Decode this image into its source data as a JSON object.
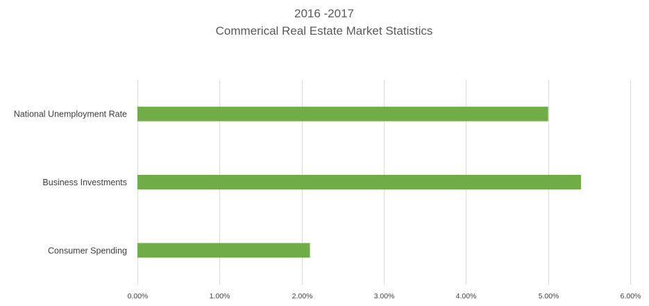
{
  "chart_data": {
    "type": "bar",
    "orientation": "horizontal",
    "title_lines": [
      "2016 -2017",
      "Commerical Real Estate Market Statistics"
    ],
    "categories": [
      "National Unemployment Rate",
      "Business Investments",
      "Consumer Spending"
    ],
    "values": [
      5.0,
      5.4,
      2.1
    ],
    "unit": "%",
    "xlim": [
      0,
      6
    ],
    "ticks": [
      "0.00%",
      "1.00%",
      "2.00%",
      "3.00%",
      "4.00%",
      "5.00%",
      "6.00%"
    ],
    "grid": true,
    "legend": "none",
    "colors": {
      "bar": "#70ad47",
      "gridline": "#d9d9d9",
      "text": "#404040",
      "title": "#595959"
    }
  }
}
